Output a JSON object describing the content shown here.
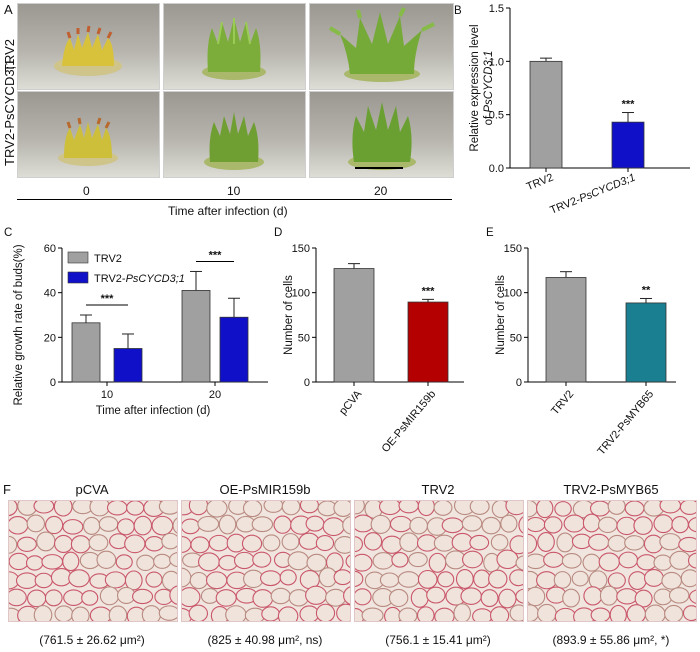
{
  "panels": {
    "A": {
      "letter": "A",
      "rows": [
        "TRV2",
        "TRV2-PsCYCD3;1"
      ],
      "time_points": [
        "0",
        "10",
        "20"
      ],
      "time_title": "Time after infection (d)"
    },
    "F": {
      "letter": "F",
      "images": [
        {
          "title": "pCVA",
          "stat": "(761.5 ± 26.62 μm²)"
        },
        {
          "title": "OE-PsMIR159b",
          "stat": "(825 ± 40.98 μm², ns)"
        },
        {
          "title": "TRV2",
          "stat": "(756.1 ± 15.41 μm²)"
        },
        {
          "title": "TRV2-PsMYB65",
          "stat": "(893.9 ± 55.86 μm², *)"
        }
      ]
    }
  },
  "chart_data": [
    {
      "id": "B",
      "letter": "B",
      "type": "bar",
      "categories": [
        "TRV2",
        "TRV2-PsCYCD3;1"
      ],
      "values": [
        1.0,
        0.43
      ],
      "errors": [
        0.03,
        0.09
      ],
      "colors": [
        "#a0a0a0",
        "#1010c8"
      ],
      "significance": [
        "",
        "***"
      ],
      "ylabel_line1": "Relative expression level",
      "ylabel_line2": "of PsCYCD3;1",
      "ylim": [
        0,
        1.5
      ],
      "yticks": [
        "0.0",
        "0.5",
        "1.0",
        "1.5"
      ]
    },
    {
      "id": "C",
      "letter": "C",
      "type": "bar",
      "categories": [
        "10",
        "20"
      ],
      "series": [
        {
          "name": "TRV2",
          "values": [
            26.5,
            41
          ],
          "errors": [
            3.5,
            8.5
          ],
          "color": "#a0a0a0"
        },
        {
          "name": "TRV2-PsCYCD3;1",
          "values": [
            15,
            29
          ],
          "errors": [
            6.5,
            8.5
          ],
          "color": "#1010c8"
        }
      ],
      "significance": [
        "***",
        "***"
      ],
      "ylabel": "Relative growth rate of buds(%)",
      "xlabel": "Time after infection (d)",
      "ylim": [
        0,
        60
      ],
      "yticks": [
        "0",
        "20",
        "40",
        "60"
      ],
      "legend": "top-left"
    },
    {
      "id": "D",
      "letter": "D",
      "type": "bar",
      "categories": [
        "pCVA",
        "OE-PsMIR159b"
      ],
      "values": [
        127,
        89.5
      ],
      "errors": [
        5.5,
        3
      ],
      "colors": [
        "#a0a0a0",
        "#b40000"
      ],
      "significance": [
        "",
        "***"
      ],
      "ylabel": "Number of cells",
      "ylim": [
        0,
        150
      ],
      "yticks": [
        "0",
        "50",
        "100",
        "150"
      ]
    },
    {
      "id": "E",
      "letter": "E",
      "type": "bar",
      "categories": [
        "TRV2",
        "TRV2-PsMYB65"
      ],
      "values": [
        117,
        88.5
      ],
      "errors": [
        6.5,
        5
      ],
      "colors": [
        "#a0a0a0",
        "#1a7f90"
      ],
      "significance": [
        "",
        "**"
      ],
      "ylabel": "Number of cells",
      "ylim": [
        0,
        150
      ],
      "yticks": [
        "0",
        "50",
        "100",
        "150"
      ]
    }
  ]
}
